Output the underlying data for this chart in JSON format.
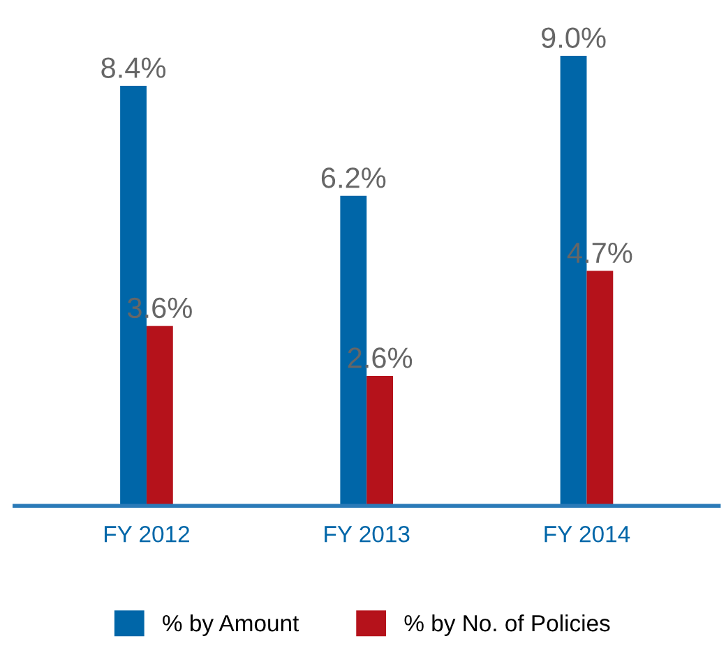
{
  "chart_data": {
    "type": "bar",
    "categories": [
      "FY 2012",
      "FY 2013",
      "FY 2014"
    ],
    "series": [
      {
        "name": "% by Amount",
        "color": "#0066a8",
        "values": [
          8.4,
          6.2,
          9.0
        ],
        "value_labels": [
          "8.4%",
          "6.2%",
          "9.0%"
        ]
      },
      {
        "name": "% by No. of Policies",
        "color": "#b5121b",
        "values": [
          3.6,
          2.6,
          4.7
        ],
        "value_labels": [
          "3.6%",
          "2.6%",
          "4.7%"
        ]
      }
    ],
    "legend": "bottom",
    "grid": false
  }
}
